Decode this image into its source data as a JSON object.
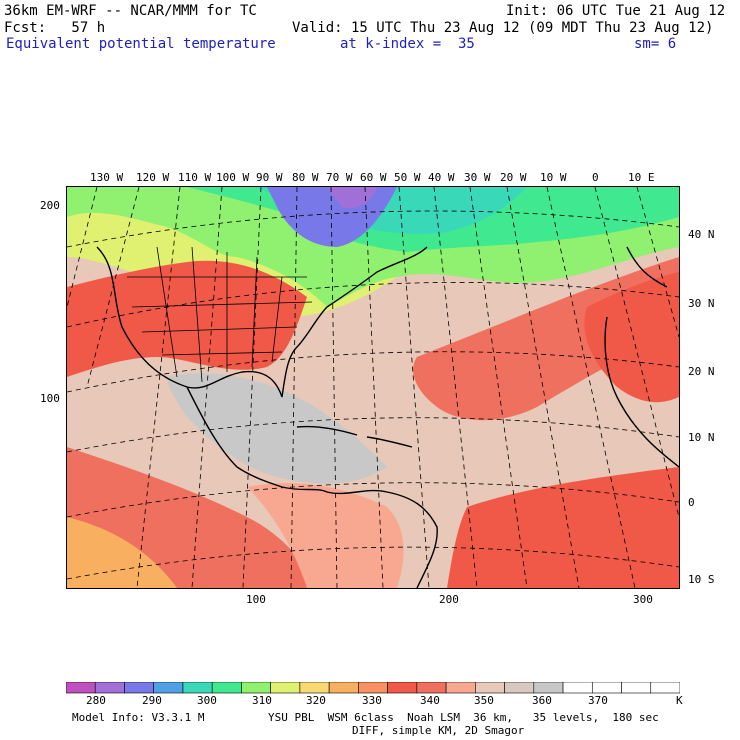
{
  "header": {
    "line1_left": "36km EM-WRF -- NCAR/MMM for TC",
    "line1_right": "Init: 06 UTC Tue 21 Aug 12",
    "line2_left": "Fcst:   57 h",
    "line2_right": "Valid: 15 UTC Thu 23 Aug 12 (09 MDT Thu 23 Aug 12)",
    "line3_field": "Equivalent potential temperature",
    "line3_level": "at k-index =  35",
    "line3_sm": "sm= 6"
  },
  "map": {
    "lon_labels": [
      "130 W",
      "120 W",
      "110 W",
      "100 W",
      "90 W",
      "80 W",
      "70 W",
      "60 W",
      "50 W",
      "40 W",
      "30 W",
      "20 W",
      "10 W",
      "0",
      "10 E"
    ],
    "lat_labels": [
      "40 N",
      "30 N",
      "20 N",
      "10 N",
      "0",
      "10 S"
    ],
    "y_grid_labels": [
      "200",
      "100"
    ],
    "x_grid_labels": [
      "100",
      "200",
      "300"
    ]
  },
  "colorbar": {
    "labels": [
      "280",
      "290",
      "300",
      "310",
      "320",
      "330",
      "340",
      "350",
      "360",
      "370"
    ],
    "units": "K",
    "colors": [
      "#c050c0",
      "#a070d8",
      "#7878e8",
      "#50a0e8",
      "#38d8b8",
      "#40e890",
      "#90f070",
      "#e0f070",
      "#f8d870",
      "#f8b060",
      "#f89060",
      "#f05848",
      "#f07060",
      "#f8a890",
      "#e8c8b8",
      "#d8c8c0",
      "#c8c8c8",
      "#ffffff",
      "#ffffff",
      "#ffffff",
      "#ffffff"
    ]
  },
  "footer": {
    "line1_left": "Model Info: V3.3.1 M",
    "line1_right": "YSU PBL  WSM 6class  Noah LSM  36 km,   35 levels,  180 sec",
    "line2": "DIFF, simple KM, 2D Smagor"
  }
}
